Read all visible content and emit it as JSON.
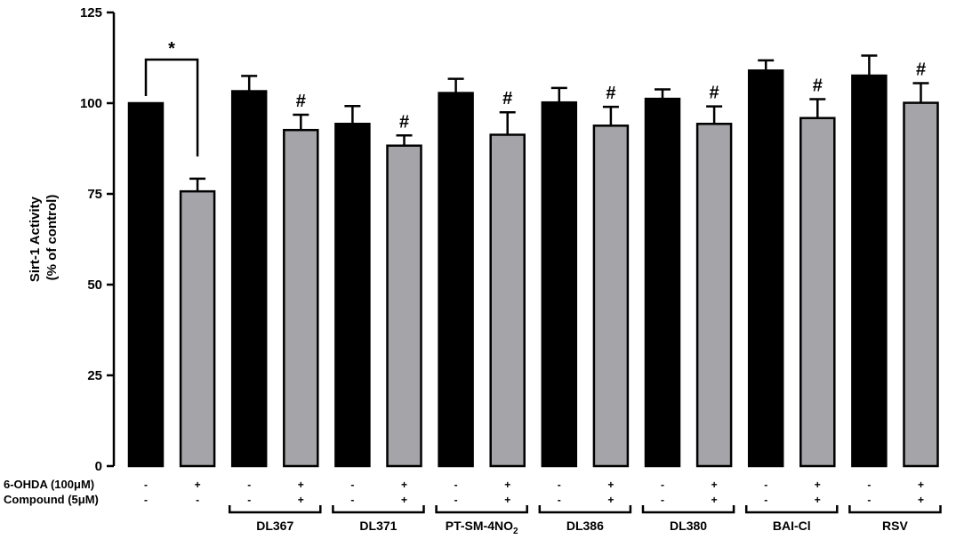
{
  "chart_data": {
    "type": "bar",
    "title": "",
    "xlabel": "",
    "ylabel": [
      "Sirt-1 Activity",
      "(% of control)"
    ],
    "ylim": [
      0,
      125
    ],
    "yticks": [
      0,
      25,
      50,
      75,
      100,
      125
    ],
    "grid": false,
    "legend": "none",
    "colors": {
      "control": "#000000",
      "treated": "#a4a4a9"
    },
    "bars": [
      {
        "value": 100.0,
        "error": 0.0,
        "color": "control",
        "ohda": "-",
        "compound": "-",
        "annotation": ""
      },
      {
        "value": 75.7,
        "error": 3.5,
        "color": "treated",
        "ohda": "+",
        "compound": "-",
        "annotation": ""
      },
      {
        "value": 103.3,
        "error": 4.2,
        "color": "control",
        "ohda": "-",
        "compound": "-",
        "annotation": ""
      },
      {
        "value": 92.6,
        "error": 4.2,
        "color": "treated",
        "ohda": "+",
        "compound": "+",
        "annotation": "#"
      },
      {
        "value": 94.3,
        "error": 4.9,
        "color": "control",
        "ohda": "-",
        "compound": "-",
        "annotation": ""
      },
      {
        "value": 88.3,
        "error": 2.8,
        "color": "treated",
        "ohda": "+",
        "compound": "+",
        "annotation": "#"
      },
      {
        "value": 102.8,
        "error": 3.9,
        "color": "control",
        "ohda": "-",
        "compound": "-",
        "annotation": ""
      },
      {
        "value": 91.3,
        "error": 6.2,
        "color": "treated",
        "ohda": "+",
        "compound": "+",
        "annotation": "#"
      },
      {
        "value": 100.2,
        "error": 4.0,
        "color": "control",
        "ohda": "-",
        "compound": "-",
        "annotation": ""
      },
      {
        "value": 93.8,
        "error": 5.2,
        "color": "treated",
        "ohda": "+",
        "compound": "+",
        "annotation": "#"
      },
      {
        "value": 101.2,
        "error": 2.6,
        "color": "control",
        "ohda": "-",
        "compound": "-",
        "annotation": ""
      },
      {
        "value": 94.3,
        "error": 4.8,
        "color": "treated",
        "ohda": "+",
        "compound": "+",
        "annotation": "#"
      },
      {
        "value": 109.0,
        "error": 2.8,
        "color": "control",
        "ohda": "-",
        "compound": "-",
        "annotation": ""
      },
      {
        "value": 95.9,
        "error": 5.2,
        "color": "treated",
        "ohda": "+",
        "compound": "+",
        "annotation": "#"
      },
      {
        "value": 107.6,
        "error": 5.5,
        "color": "control",
        "ohda": "-",
        "compound": "-",
        "annotation": ""
      },
      {
        "value": 100.1,
        "error": 5.4,
        "color": "treated",
        "ohda": "+",
        "compound": "+",
        "annotation": "#"
      }
    ],
    "condition_rows": [
      {
        "label": "6-OHDA (100μM)",
        "field": "ohda"
      },
      {
        "label": "Compound (5μM)",
        "field": "compound"
      }
    ],
    "groups": [
      {
        "label": "DL367",
        "bars": [
          2,
          3
        ]
      },
      {
        "label": "DL371",
        "bars": [
          4,
          5
        ]
      },
      {
        "label": "PT-SM-4NO",
        "label_subscript": "2",
        "bars": [
          6,
          7
        ]
      },
      {
        "label": "DL386",
        "bars": [
          8,
          9
        ]
      },
      {
        "label": "DL380",
        "bars": [
          10,
          11
        ]
      },
      {
        "label": "BAI-Cl",
        "bars": [
          12,
          13
        ]
      },
      {
        "label": "RSV",
        "bars": [
          14,
          15
        ]
      }
    ],
    "significance": [
      {
        "from": 0,
        "to": 1,
        "label": "*"
      }
    ]
  }
}
